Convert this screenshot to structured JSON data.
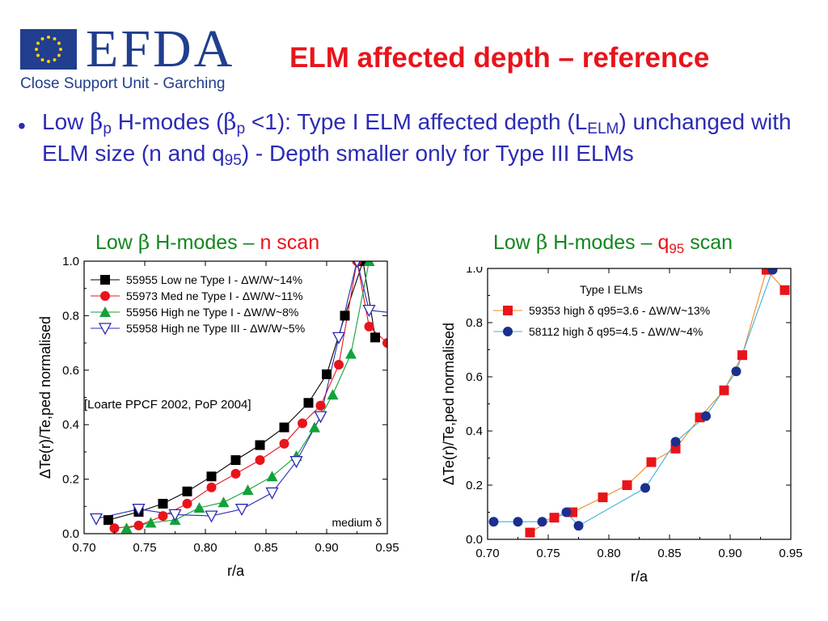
{
  "logo": {
    "text": "EFDA",
    "subtitle": "Close Support Unit - Garching"
  },
  "title": "ELM affected depth – reference",
  "bullet": {
    "p1": "Low ",
    "beta": "β",
    "p": "p",
    "p2": " H-modes (",
    "p3": " <1):  Type I ELM affected depth (L",
    "elm": "ELM",
    "p4": ") unchanged with ELM size (n and q",
    "q95": "95",
    "p5": ") - Depth smaller only for Type III ELMs"
  },
  "colors": {
    "title": "#e8141b",
    "bullet": "#2b2bb5",
    "chart_title_green": "#13861f",
    "logo_blue": "#213e8f"
  },
  "chart_titles": {
    "left": {
      "prefix": "Low ",
      "beta": "β",
      "mid": " H-modes – ",
      "red": "n scan"
    },
    "right": {
      "prefix": "Low ",
      "beta": "β",
      "mid": " H-modes – ",
      "red": "q",
      "red_sub": "95",
      "tail": " scan"
    }
  },
  "chart_data": [
    {
      "type": "line",
      "xlabel": "r/a",
      "ylabel": "ΔTe(r)/Te,ped normalised",
      "xlim": [
        0.7,
        0.95
      ],
      "ylim": [
        0.0,
        1.0
      ],
      "xticks": [
        "0.70",
        "0.75",
        "0.80",
        "0.85",
        "0.90",
        "0.95"
      ],
      "yticks": [
        "0.0",
        "0.2",
        "0.4",
        "0.6",
        "0.8",
        "1.0"
      ],
      "annotation": "[Loarte PPCF 2002, PoP 2004]",
      "corner_label": "medium δ",
      "legend_placement": "top-left",
      "series": [
        {
          "name": "55955 Low ne Type I - ΔW/W~14%",
          "marker": "square",
          "color": "#000000",
          "x": [
            0.72,
            0.745,
            0.765,
            0.785,
            0.805,
            0.825,
            0.845,
            0.865,
            0.885,
            0.9,
            0.915,
            0.93,
            0.94
          ],
          "y": [
            0.05,
            0.08,
            0.11,
            0.155,
            0.21,
            0.27,
            0.325,
            0.39,
            0.48,
            0.585,
            0.8,
            1.0,
            0.72
          ]
        },
        {
          "name": "55973 Med ne Type I - ΔW/W~11%",
          "marker": "circle",
          "color": "#e8141b",
          "x": [
            0.725,
            0.745,
            0.765,
            0.785,
            0.805,
            0.825,
            0.845,
            0.865,
            0.88,
            0.895,
            0.91,
            0.925,
            0.935,
            0.95
          ],
          "y": [
            0.02,
            0.03,
            0.065,
            0.11,
            0.17,
            0.22,
            0.27,
            0.33,
            0.405,
            0.47,
            0.62,
            1.0,
            0.76,
            0.7
          ]
        },
        {
          "name": "55956 High ne Type I - ΔW/W~8%",
          "marker": "triangle",
          "color": "#13a13a",
          "x": [
            0.735,
            0.755,
            0.775,
            0.795,
            0.815,
            0.835,
            0.855,
            0.875,
            0.89,
            0.905,
            0.92,
            0.935
          ],
          "y": [
            0.02,
            0.04,
            0.05,
            0.095,
            0.115,
            0.16,
            0.21,
            0.285,
            0.39,
            0.51,
            0.66,
            1.0
          ]
        },
        {
          "name": "55958 High ne Type III - ΔW/W~5%",
          "marker": "triangle-down",
          "color": "#2b2bb5",
          "x": [
            0.71,
            0.745,
            0.775,
            0.805,
            0.83,
            0.855,
            0.875,
            0.895,
            0.91,
            0.925,
            0.935,
            0.955
          ],
          "y": [
            0.055,
            0.09,
            0.07,
            0.065,
            0.09,
            0.15,
            0.265,
            0.43,
            0.72,
            1.0,
            0.82,
            0.81
          ]
        }
      ]
    },
    {
      "type": "line",
      "xlabel": "r/a",
      "ylabel": "ΔTe(r)/Te,ped normalised",
      "xlim": [
        0.7,
        0.95
      ],
      "ylim": [
        0.0,
        1.0
      ],
      "xticks": [
        "0.70",
        "0.75",
        "0.80",
        "0.85",
        "0.90",
        "0.95"
      ],
      "yticks": [
        "0.0",
        "0.2",
        "0.4",
        "0.6",
        "0.8",
        "1.0"
      ],
      "legend_title": "Type I ELMs",
      "legend_placement": "top-left",
      "series": [
        {
          "name": "59353 high δ q95=3.6 - ΔW/W~13%",
          "marker": "square",
          "color": "#e8141b",
          "line_color": "#f08a24",
          "x": [
            0.735,
            0.755,
            0.77,
            0.795,
            0.815,
            0.835,
            0.855,
            0.875,
            0.895,
            0.91,
            0.93,
            0.945
          ],
          "y": [
            0.025,
            0.08,
            0.1,
            0.155,
            0.2,
            0.285,
            0.335,
            0.45,
            0.55,
            0.68,
            0.995,
            0.92
          ]
        },
        {
          "name": "58112 high δ q95=4.5 - ΔW/W~4%",
          "marker": "circle",
          "color": "#1a2f8f",
          "line_color": "#3fb4d9",
          "x": [
            0.705,
            0.725,
            0.745,
            0.765,
            0.775,
            0.83,
            0.855,
            0.88,
            0.905,
            0.935
          ],
          "y": [
            0.065,
            0.065,
            0.065,
            0.1,
            0.05,
            0.19,
            0.36,
            0.455,
            0.62,
            0.995
          ]
        }
      ]
    }
  ]
}
